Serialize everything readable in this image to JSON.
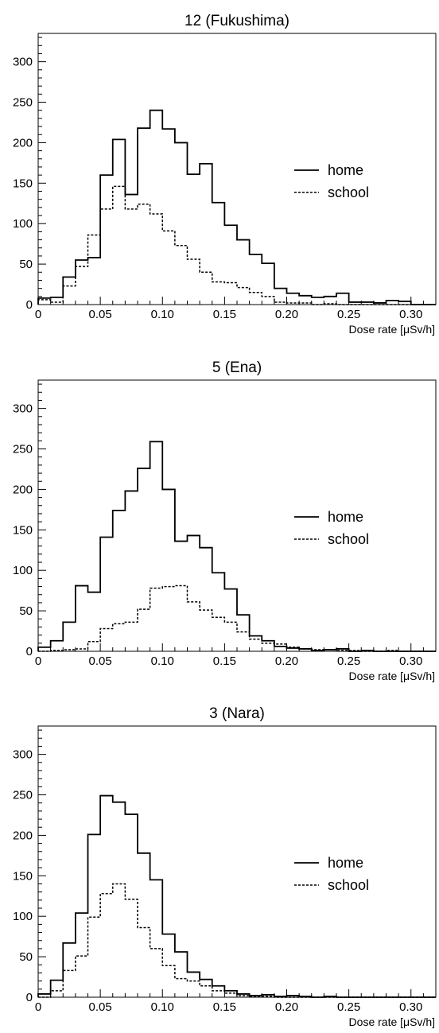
{
  "chart_data": [
    {
      "type": "histogram",
      "title": "12 (Fukushima)",
      "xlabel": "Dose rate [μSv/h]",
      "ylabel": "",
      "xlim": [
        0,
        0.32
      ],
      "ylim": [
        0,
        335
      ],
      "bin_width": 0.01,
      "x_ticks": [
        0,
        0.05,
        0.1,
        0.15,
        0.2,
        0.25,
        0.3
      ],
      "x_tick_labels": [
        "0",
        "0.05",
        "0.10",
        "0.15",
        "0.20",
        "0.25",
        "0.30"
      ],
      "y_ticks": [
        0,
        50,
        100,
        150,
        200,
        250,
        300
      ],
      "y_tick_labels": [
        "0",
        "50",
        "100",
        "150",
        "200",
        "250",
        "300"
      ],
      "legend_position": "right",
      "series": [
        {
          "name": "home",
          "style": "solid",
          "values": [
            8,
            9,
            34,
            55,
            58,
            160,
            204,
            136,
            218,
            240,
            217,
            200,
            161,
            174,
            126,
            98,
            80,
            62,
            51,
            20,
            14,
            11,
            9,
            10,
            14,
            3,
            3,
            2,
            5,
            4,
            0,
            0
          ]
        },
        {
          "name": "school",
          "style": "dashed",
          "values": [
            6,
            3,
            23,
            47,
            86,
            118,
            146,
            118,
            124,
            112,
            91,
            73,
            56,
            40,
            28,
            27,
            21,
            15,
            10,
            3,
            2,
            2,
            0,
            1,
            0,
            0,
            0,
            0,
            0,
            0,
            0,
            0
          ]
        }
      ]
    },
    {
      "type": "histogram",
      "title": "5 (Ena)",
      "xlabel": "Dose rate [μSv/h]",
      "ylabel": "",
      "xlim": [
        0,
        0.32
      ],
      "ylim": [
        0,
        335
      ],
      "bin_width": 0.01,
      "x_ticks": [
        0,
        0.05,
        0.1,
        0.15,
        0.2,
        0.25,
        0.3
      ],
      "x_tick_labels": [
        "0",
        "0.05",
        "0.10",
        "0.15",
        "0.20",
        "0.25",
        "0.30"
      ],
      "y_ticks": [
        0,
        50,
        100,
        150,
        200,
        250,
        300
      ],
      "y_tick_labels": [
        "0",
        "50",
        "100",
        "150",
        "200",
        "250",
        "300"
      ],
      "legend_position": "right",
      "series": [
        {
          "name": "home",
          "style": "solid",
          "values": [
            5,
            13,
            36,
            81,
            73,
            141,
            174,
            198,
            226,
            259,
            200,
            136,
            143,
            128,
            97,
            77,
            45,
            19,
            13,
            6,
            4,
            3,
            1,
            2,
            3,
            0,
            1,
            0,
            0,
            0,
            0,
            0
          ]
        },
        {
          "name": "school",
          "style": "dashed",
          "values": [
            0,
            1,
            2,
            3,
            12,
            28,
            34,
            36,
            52,
            78,
            80,
            81,
            61,
            51,
            42,
            36,
            24,
            15,
            10,
            9,
            5,
            3,
            2,
            2,
            1,
            1,
            0,
            0,
            1,
            0,
            0,
            0
          ]
        }
      ]
    },
    {
      "type": "histogram",
      "title": "3 (Nara)",
      "xlabel": "Dose rate [μSv/h]",
      "ylabel": "",
      "xlim": [
        0,
        0.32
      ],
      "ylim": [
        0,
        335
      ],
      "bin_width": 0.01,
      "x_ticks": [
        0,
        0.05,
        0.1,
        0.15,
        0.2,
        0.25,
        0.3
      ],
      "x_tick_labels": [
        "0",
        "0.05",
        "0.10",
        "0.15",
        "0.20",
        "0.25",
        "0.30"
      ],
      "y_ticks": [
        0,
        50,
        100,
        150,
        200,
        250,
        300
      ],
      "y_tick_labels": [
        "0",
        "50",
        "100",
        "150",
        "200",
        "250",
        "300"
      ],
      "legend_position": "right",
      "series": [
        {
          "name": "home",
          "style": "solid",
          "values": [
            4,
            21,
            67,
            104,
            201,
            249,
            241,
            226,
            178,
            145,
            78,
            56,
            31,
            22,
            14,
            8,
            4,
            2,
            3,
            1,
            2,
            1,
            0,
            1,
            0,
            0,
            0,
            0,
            0,
            0,
            0,
            0
          ]
        },
        {
          "name": "school",
          "style": "dashed",
          "values": [
            0,
            8,
            33,
            51,
            99,
            128,
            140,
            121,
            86,
            60,
            39,
            23,
            20,
            14,
            8,
            5,
            2,
            1,
            1,
            0,
            0,
            0,
            0,
            0,
            0,
            0,
            0,
            0,
            0,
            0,
            0,
            0
          ]
        }
      ]
    }
  ]
}
